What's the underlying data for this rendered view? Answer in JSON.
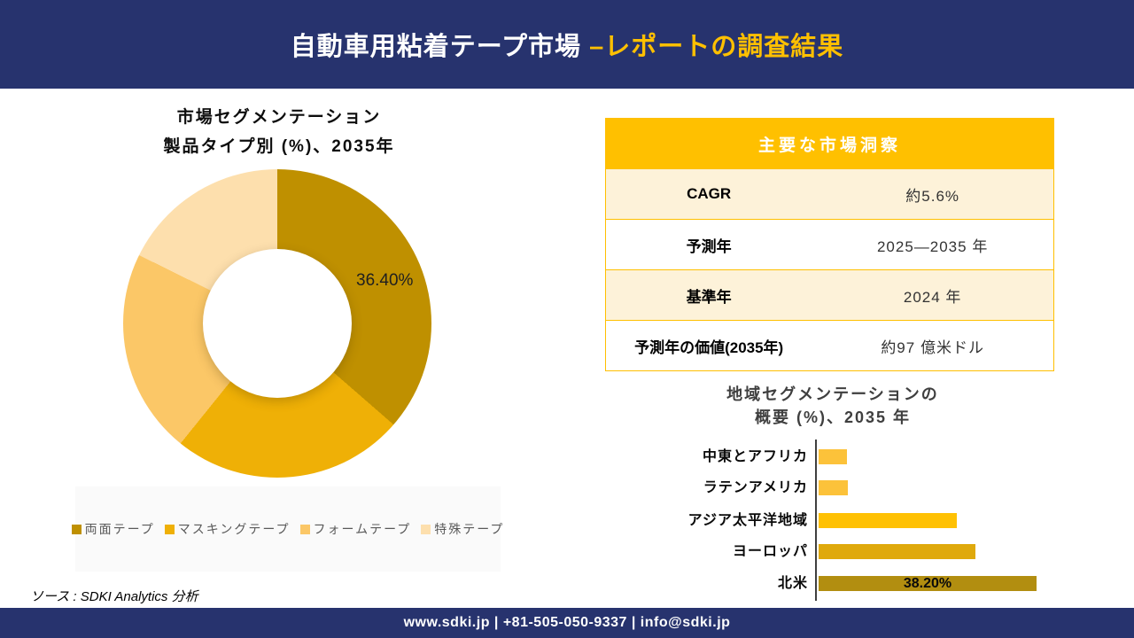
{
  "header": {
    "title_main": "自動車用粘着テープ市場",
    "title_accent": " –レポートの調査結果"
  },
  "colors": {
    "navy": "#27336E",
    "gold_accent": "#FFC000",
    "table_row_cream": "#FDF2D9",
    "legend_panel_bg": "#FAFAFA"
  },
  "donut_section": {
    "title_line1": "市場セグメンテーション",
    "title_line2": "製品タイプ別 (%)、2035年"
  },
  "insights_table": {
    "title": "主要な市場洞察",
    "rows": [
      {
        "label": "CAGR",
        "value": "約5.6%"
      },
      {
        "label": "予測年",
        "value": "2025—2035 年"
      },
      {
        "label": "基準年",
        "value": "2024 年"
      },
      {
        "label": "予測年の価値(2035年)",
        "value": "約97 億米ドル"
      }
    ]
  },
  "bar_section": {
    "title_line1": "地域セグメンテーションの",
    "title_line2": "概要 (%)、2035 年"
  },
  "source_note": "ソース : SDKI Analytics 分析",
  "footer": {
    "text": "www.sdki.jp | +81-505-050-9337 | info@sdki.jp"
  },
  "chart_data": [
    {
      "type": "pie",
      "subtype": "donut",
      "title": "市場セグメンテーション 製品タイプ別 (%)、2035年",
      "labels": [
        "両面テープ",
        "マスキングテープ",
        "フォームテープ",
        "特殊テープ"
      ],
      "values": [
        36.4,
        24.4,
        21.5,
        17.7
      ],
      "colors": [
        "#BF9000",
        "#EFB006",
        "#FBC767",
        "#FDDFAD"
      ],
      "data_labels": [
        "36.40%",
        "",
        "",
        ""
      ],
      "legend_position": "bottom",
      "start_angle": 0,
      "hole_ratio": 0.48
    },
    {
      "type": "bar",
      "orientation": "horizontal",
      "title": "地域セグメンテーションの 概要 (%)、2035 年",
      "categories": [
        "中東とアフリカ",
        "ラテンアメリカ",
        "アジア太平洋地域",
        "ヨーロッパ",
        "北米"
      ],
      "values": [
        5.0,
        5.1,
        24.2,
        27.5,
        38.2
      ],
      "colors": [
        "#FCC23A",
        "#FCC23A",
        "#FFC103",
        "#DFA90C",
        "#B28E10"
      ],
      "data_labels": [
        "",
        "",
        "",
        "",
        "38.20%"
      ],
      "xlim": [
        0,
        40
      ],
      "grid": false,
      "legend_position": "none"
    }
  ]
}
